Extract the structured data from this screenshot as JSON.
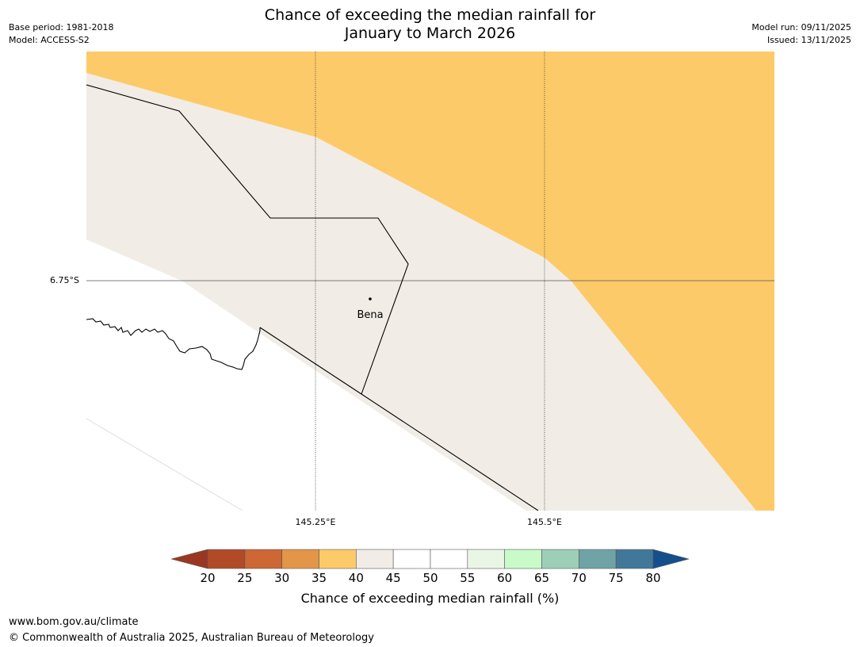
{
  "title": {
    "line1": "Chance of exceeding the median rainfall for",
    "line2": "January to March 2026"
  },
  "meta": {
    "base_period": "Base period: 1981-2018",
    "model": "Model: ACCESS-S2",
    "model_run": "Model run: 09/11/2025",
    "issued": "Issued: 13/11/2025"
  },
  "map": {
    "place_label": "Bena",
    "lat_label": "6.75°S",
    "lon_labels": [
      "145.25°E",
      "145.5°E"
    ],
    "colors": {
      "band_35_40": "#fdca69",
      "band_40_45": "#f1ece6",
      "band_45_55": "#ffffff",
      "boundary": "#000000",
      "gridline": "#555555"
    }
  },
  "colorbar": {
    "label": "Chance of exceeding median rainfall (%)",
    "ticks": [
      "20",
      "25",
      "30",
      "35",
      "40",
      "45",
      "50",
      "55",
      "60",
      "65",
      "70",
      "75",
      "80"
    ],
    "under_color": "#9a3722",
    "over_color": "#154f8b",
    "bins": [
      {
        "range": "20-25",
        "color": "#b24a27"
      },
      {
        "range": "25-30",
        "color": "#cd6734"
      },
      {
        "range": "30-35",
        "color": "#e39548"
      },
      {
        "range": "35-40",
        "color": "#fdca69"
      },
      {
        "range": "40-45",
        "color": "#f1ece6"
      },
      {
        "range": "45-50",
        "color": "#ffffff"
      },
      {
        "range": "50-55",
        "color": "#ffffff"
      },
      {
        "range": "55-60",
        "color": "#e9f6e6"
      },
      {
        "range": "60-65",
        "color": "#c8fbc8"
      },
      {
        "range": "65-70",
        "color": "#9dcfb6"
      },
      {
        "range": "70-75",
        "color": "#6fa3a5"
      },
      {
        "range": "75-80",
        "color": "#41789a"
      }
    ]
  },
  "footer": {
    "url": "www.bom.gov.au/climate",
    "copyright": "© Commonwealth of Australia 2025, Australian Bureau of Meteorology"
  }
}
